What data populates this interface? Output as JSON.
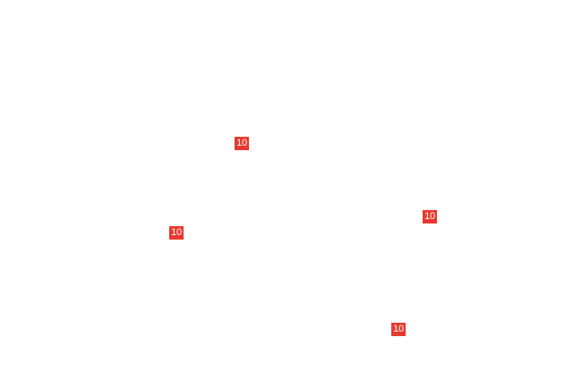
{
  "badge_color": "#e8392f",
  "badges": [
    {
      "label": "10"
    },
    {
      "label": "10"
    },
    {
      "label": "10"
    },
    {
      "label": "10"
    }
  ]
}
